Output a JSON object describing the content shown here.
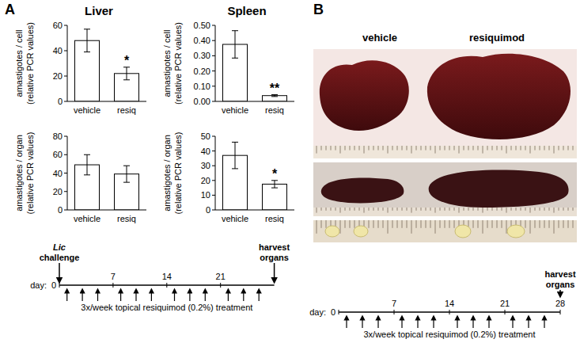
{
  "chart_data": [
    {
      "type": "bar",
      "title": "Liver",
      "ylabel": [
        "amastigotes / cell",
        "(relative PCR values)"
      ],
      "categories": [
        "vehicle",
        "resiq"
      ],
      "values": [
        48,
        22
      ],
      "errors": [
        9,
        5
      ],
      "color": "#ffffff",
      "ylim": [
        0,
        60
      ],
      "yticks": [
        0,
        20,
        40,
        60
      ],
      "grid": false,
      "annotations": [
        {
          "category": "resiq",
          "text": "*"
        }
      ]
    },
    {
      "type": "bar",
      "title": "Spleen",
      "ylabel": [
        "amastigotes / cell",
        "(relative PCR values)"
      ],
      "categories": [
        "vehicle",
        "resiq"
      ],
      "values": [
        0.375,
        0.038
      ],
      "errors": [
        0.09,
        0.006
      ],
      "color": "#ffffff",
      "ylim": [
        0,
        0.5
      ],
      "yticks": [
        {
          "value": 0,
          "label": "0.00"
        },
        {
          "value": 0.1,
          "label": "0.10"
        },
        {
          "value": 0.2,
          "label": "0.20"
        },
        {
          "value": 0.3,
          "label": "0.30"
        },
        {
          "value": 0.4,
          "label": "0.40"
        },
        {
          "value": 0.5,
          "label": "0.50"
        }
      ],
      "grid": false,
      "annotations": [
        {
          "category": "resiq",
          "text": "**"
        }
      ]
    },
    {
      "type": "bar",
      "ylabel": [
        "amastigotes / organ",
        "(relative PCR values)"
      ],
      "categories": [
        "vehicle",
        "resiq"
      ],
      "values": [
        49,
        39
      ],
      "errors": [
        11,
        9
      ],
      "color": "#ffffff",
      "ylim": [
        0,
        80
      ],
      "yticks": [
        0,
        20,
        40,
        60,
        80
      ],
      "grid": false
    },
    {
      "type": "bar",
      "ylabel": [
        "amastigotes / organ",
        "(relative PCR values)"
      ],
      "categories": [
        "vehicle",
        "resiq"
      ],
      "values": [
        37,
        17.5
      ],
      "errors": [
        9,
        2.5
      ],
      "color": "#ffffff",
      "ylim": [
        0,
        50
      ],
      "yticks": [
        0,
        10,
        20,
        30,
        40,
        50
      ],
      "grid": false,
      "annotations": [
        {
          "category": "resiq",
          "text": "*"
        }
      ]
    }
  ],
  "panels": [
    {
      "label": "A",
      "timeline": {
        "day_label": "day:",
        "range": [
          0,
          28
        ],
        "ticks": [
          0,
          7,
          14,
          21
        ],
        "events": [
          {
            "day": 0,
            "label": [
              "Lic",
              "challenge"
            ]
          },
          {
            "day": 28,
            "label": [
              "harvest",
              "organs"
            ]
          }
        ],
        "treatment_days": [
          1,
          3,
          5,
          8,
          10,
          12,
          15,
          17,
          19,
          22,
          24,
          26
        ],
        "treatment_label": "3x/week topical resiquimod (0.2%) treatment"
      }
    },
    {
      "label": "B",
      "columns": [
        "vehicle",
        "resiquimod"
      ],
      "timeline": {
        "day_label": "day:",
        "range": [
          0,
          28
        ],
        "ticks": [
          0,
          7,
          14,
          21,
          28
        ],
        "events": [
          {
            "day": 28,
            "label": [
              "harvest",
              "organs"
            ]
          }
        ],
        "treatment_days": [
          1,
          3,
          5,
          8,
          10,
          12,
          15,
          17,
          19,
          22,
          24,
          26
        ],
        "treatment_label": "3x/week topical resiquimod (0.2%) treatment"
      }
    }
  ]
}
